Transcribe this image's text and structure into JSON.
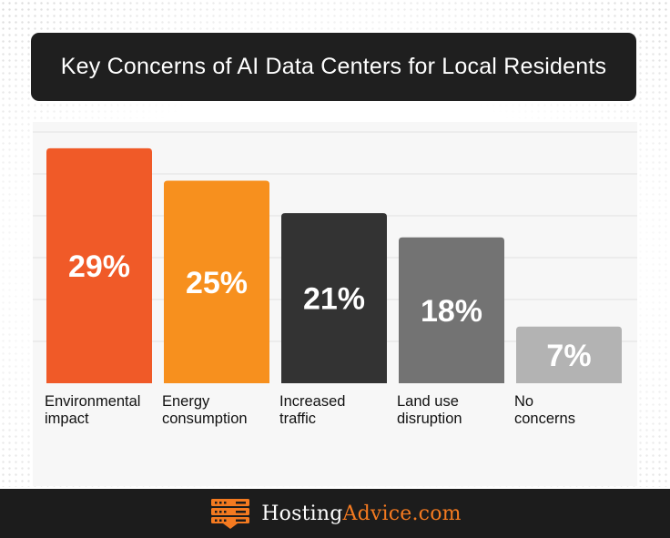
{
  "title": "Key Concerns of AI Data Centers for Local Residents",
  "brand": {
    "part1": "Hosting",
    "part2": "Advice.com",
    "accent": "#f47a20"
  },
  "colors": {
    "title_bg": "#1f1f1f",
    "footer_bg": "#1c1c1c"
  },
  "chart_data": {
    "type": "bar",
    "categories": [
      [
        "Environmental",
        "impact"
      ],
      [
        "Energy",
        "consumption"
      ],
      [
        "Increased",
        "traffic"
      ],
      [
        "Land use",
        "disruption"
      ],
      [
        "No",
        "concerns"
      ]
    ],
    "values": [
      29,
      25,
      21,
      18,
      7
    ],
    "labels": [
      "29%",
      "25%",
      "21%",
      "18%",
      "7%"
    ],
    "colors": [
      "#f05a28",
      "#f7901e",
      "#333333",
      "#737373",
      "#b3b3b3"
    ],
    "ylim": [
      0,
      30
    ],
    "grid": true,
    "legend": "none"
  }
}
